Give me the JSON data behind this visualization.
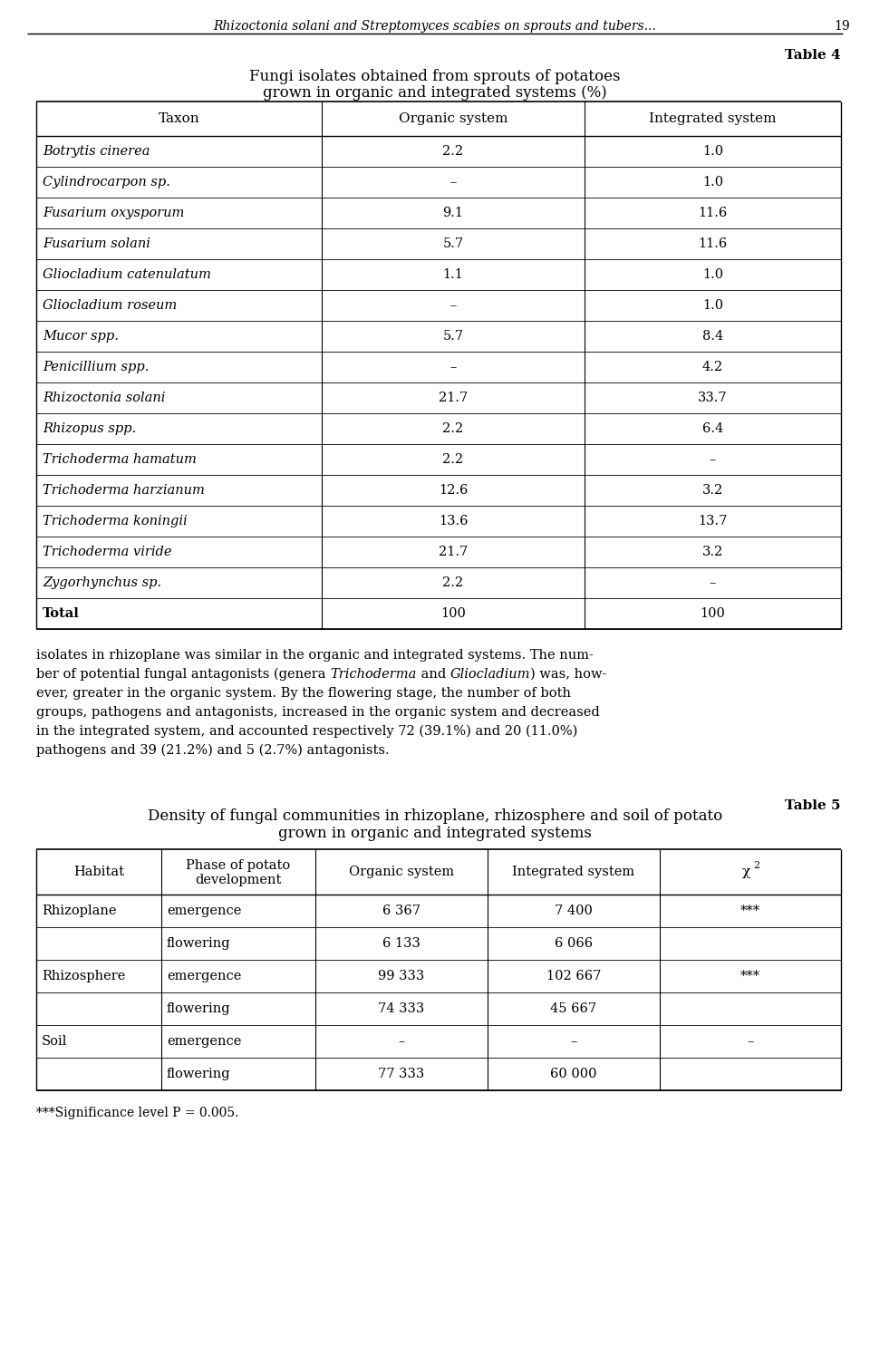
{
  "page_header": "Rhizoctonia solani and Streptomyces scabies on sprouts and tubers...",
  "page_number": "19",
  "table4_label": "Table 4",
  "table4_title_line1": "Fungi isolates obtained from sprouts of potatoes",
  "table4_title_line2": "grown in organic and integrated systems (%)",
  "table4_headers": [
    "Taxon",
    "Organic system",
    "Integrated system"
  ],
  "table4_rows": [
    [
      "Botrytis cinerea",
      "2.2",
      "1.0"
    ],
    [
      "Cylindrocarpon sp.",
      "–",
      "1.0"
    ],
    [
      "Fusarium oxysporum",
      "9.1",
      "11.6"
    ],
    [
      "Fusarium solani",
      "5.7",
      "11.6"
    ],
    [
      "Gliocladium catenulatum",
      "1.1",
      "1.0"
    ],
    [
      "Gliocladium roseum",
      "–",
      "1.0"
    ],
    [
      "Mucor spp.",
      "5.7",
      "8.4"
    ],
    [
      "Penicillium spp.",
      "–",
      "4.2"
    ],
    [
      "Rhizoctonia solani",
      "21.7",
      "33.7"
    ],
    [
      "Rhizopus spp.",
      "2.2",
      "6.4"
    ],
    [
      "Trichoderma hamatum",
      "2.2",
      "–"
    ],
    [
      "Trichoderma harzianum",
      "12.6",
      "3.2"
    ],
    [
      "Trichoderma koningii",
      "13.6",
      "13.7"
    ],
    [
      "Trichoderma viride",
      "21.7",
      "3.2"
    ],
    [
      "Zygorhynchus sp.",
      "2.2",
      "–"
    ],
    [
      "Total",
      "100",
      "100"
    ]
  ],
  "table4_italic_rows": [
    0,
    1,
    2,
    3,
    4,
    5,
    6,
    7,
    8,
    9,
    10,
    11,
    12,
    13,
    14
  ],
  "table5_label": "Table 5",
  "table5_title_line1": "Density of fungal communities in rhizoplane, rhizosphere and soil of potato",
  "table5_title_line2": "grown in organic and integrated systems",
  "table5_headers": [
    "Habitat",
    "Phase of potato\ndevelopment",
    "Organic system",
    "Integrated system",
    "χ²"
  ],
  "table5_rows": [
    [
      "Rhizoplane",
      "emergence",
      "6 367",
      "7 400",
      "***"
    ],
    [
      "",
      "flowering",
      "6 133",
      "6 066",
      ""
    ],
    [
      "Rhizosphere",
      "emergence",
      "99 333",
      "102 667",
      "***"
    ],
    [
      "",
      "flowering",
      "74 333",
      "45 667",
      ""
    ],
    [
      "Soil",
      "emergence",
      "–",
      "–",
      "–"
    ],
    [
      "",
      "flowering",
      "77 333",
      "60 000",
      ""
    ]
  ],
  "footnote": "***Significance level P = 0.005.",
  "bg_color": "#ffffff",
  "text_color": "#000000"
}
